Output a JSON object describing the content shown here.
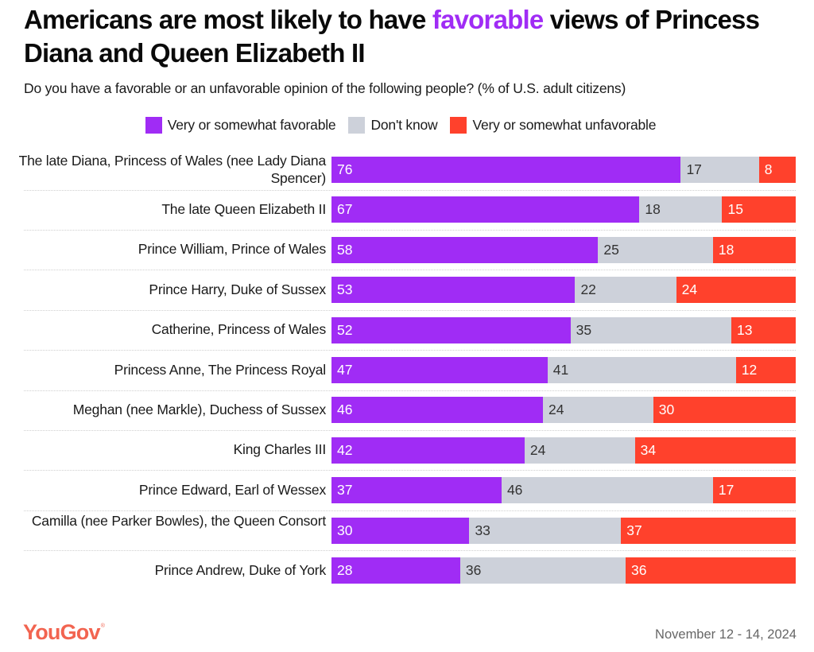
{
  "title": {
    "prefix": "Americans are most likely to have ",
    "highlight": "favorable",
    "suffix": " views of Princess Diana and Queen Elizabeth II",
    "highlight_color": "#a02cf5"
  },
  "subtitle": "Do you have a favorable or an unfavorable opinion of the following people? (% of U.S. adult citizens)",
  "footer": {
    "brand": "YouGov",
    "brand_mark": "®",
    "date": "November 12 - 14, 2024"
  },
  "chart_data": {
    "type": "bar",
    "orientation": "horizontal",
    "stacked": true,
    "title": "Americans are most likely to have favorable views of Princess Diana and Queen Elizabeth II",
    "subtitle": "Do you have a favorable or an unfavorable opinion of the following people? (% of U.S. adult citizens)",
    "xlabel": "",
    "ylabel": "",
    "xlim": [
      0,
      101
    ],
    "legend_position": "top-center",
    "grid": false,
    "categories": [
      "The late Diana, Princess of Wales (nee Lady Diana Spencer)",
      "The late Queen Elizabeth II",
      "Prince William, Prince of Wales",
      "Prince Harry, Duke of Sussex",
      "Catherine, Princess of Wales",
      "Princess Anne, The Princess Royal",
      "Meghan (nee Markle), Duchess of Sussex",
      "King Charles III",
      "Prince Edward, Earl of Wessex",
      "Camilla (nee Parker Bowles), the Queen Consort",
      "Prince Andrew, Duke of York"
    ],
    "series": [
      {
        "name": "Very or somewhat favorable",
        "color": "#a02cf5",
        "label_color": "#ffffff",
        "values": [
          76,
          67,
          58,
          53,
          52,
          47,
          46,
          42,
          37,
          30,
          28
        ]
      },
      {
        "name": "Don't know",
        "color": "#cdd1da",
        "label_color": "#333333",
        "values": [
          17,
          18,
          25,
          22,
          35,
          41,
          24,
          24,
          46,
          33,
          36
        ]
      },
      {
        "name": "Very or somewhat unfavorable",
        "color": "#ff412c",
        "label_color": "#ffffff",
        "values": [
          8,
          15,
          18,
          24,
          13,
          12,
          30,
          34,
          17,
          37,
          36
        ]
      }
    ]
  }
}
